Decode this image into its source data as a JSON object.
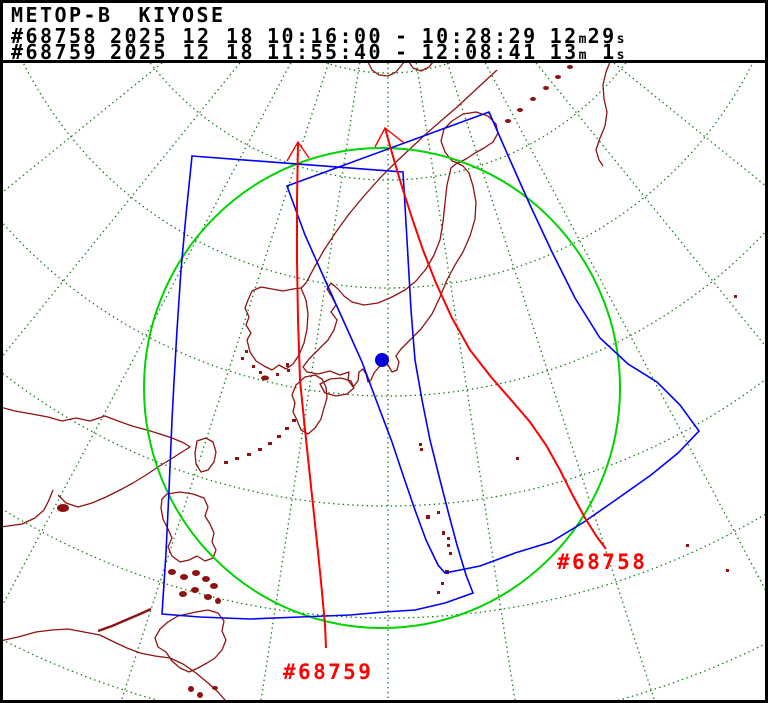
{
  "header": {
    "satellite": "METOP-B",
    "station": "KIYOSE",
    "passes": [
      {
        "orbit": "#68758",
        "date": "2025 12 18",
        "start": "10:16:00",
        "separator": "-",
        "end": "10:28:29",
        "duration_min": "12",
        "duration_min_unit": "m",
        "duration_sec": "29",
        "duration_sec_unit": "s"
      },
      {
        "orbit": "#68759",
        "date": "2025 12 18",
        "start": "11:55:40",
        "separator": "-",
        "end": "12:08:41",
        "duration_min": "13",
        "duration_min_unit": "m",
        "duration_sec": " 1",
        "duration_sec_unit": "s"
      }
    ]
  },
  "map": {
    "labels": [
      {
        "text": "#68758"
      },
      {
        "text": "#68759"
      }
    ],
    "station_marker": {
      "shape": "filled-circle",
      "location": "Kiyose"
    },
    "colors": {
      "background": "#ffffff",
      "border": "#000000",
      "header_text": "#000000",
      "ground_track": "#ff0000",
      "swath_outline": "#0000ff",
      "acquisition_circle": "#00d400",
      "graticule": "#0e7a0e",
      "coastline": "#8e1212",
      "station_marker": "#0000dd",
      "pass_label": "#ff0000"
    }
  }
}
